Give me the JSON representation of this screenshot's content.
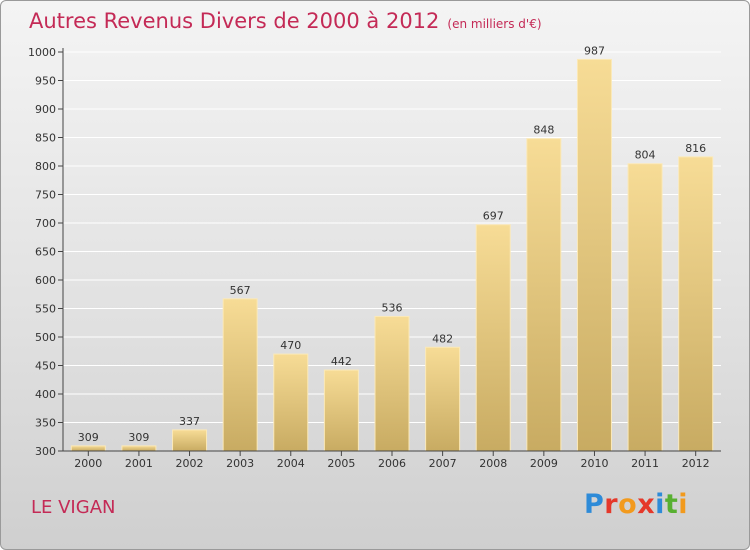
{
  "header": {
    "title": "Autres Revenus Divers de 2000 à 2012",
    "unit": "(en milliers d'€)"
  },
  "footer": {
    "commune": "LE VIGAN",
    "logo_text": "Proxiti",
    "logo_letter_colors": [
      "#2e8bd8",
      "#e5382a",
      "#f29a1d",
      "#e5382a",
      "#2e8bd8",
      "#58b031",
      "#f29a1d"
    ]
  },
  "colors": {
    "title": "#c42a56",
    "bar_light": "#f7dc96",
    "bar_dark": "#c8ab62",
    "axis": "#444444",
    "grid": "#ffffff"
  },
  "chart_data": {
    "type": "bar",
    "title": "Autres Revenus Divers de 2000 à 2012",
    "categories": [
      "2000",
      "2001",
      "2002",
      "2003",
      "2004",
      "2005",
      "2006",
      "2007",
      "2008",
      "2009",
      "2010",
      "2011",
      "2012"
    ],
    "values": [
      309,
      309,
      337,
      567,
      470,
      442,
      536,
      482,
      697,
      848,
      987,
      804,
      816
    ],
    "ylim": [
      300,
      1000
    ],
    "yticks": [
      300,
      350,
      400,
      450,
      500,
      550,
      600,
      650,
      700,
      750,
      800,
      850,
      900,
      950,
      1000
    ],
    "grid": true,
    "data_labels": true
  }
}
